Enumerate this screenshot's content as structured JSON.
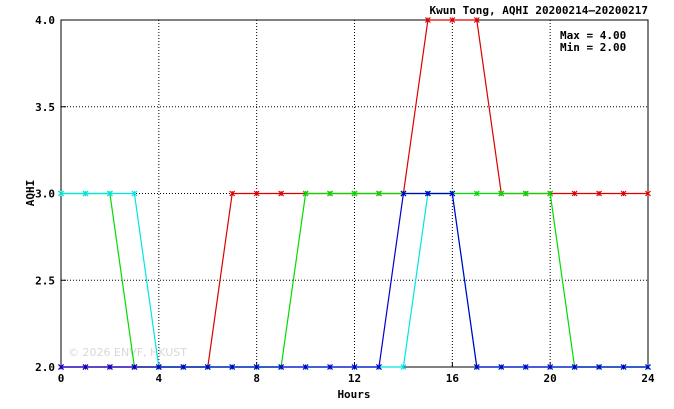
{
  "chart_data": {
    "type": "line",
    "title": "Kwun Tong, AQHI 20200214–20200217",
    "xlabel": "Hours",
    "ylabel": "AQHI",
    "xlim": [
      0,
      24
    ],
    "ylim": [
      2.0,
      4.0
    ],
    "xticks": [
      0,
      4,
      8,
      12,
      16,
      20,
      24
    ],
    "yticks": [
      2.0,
      2.5,
      3.0,
      3.5,
      4.0
    ],
    "xtick_labels": [
      "0",
      "4",
      "8",
      "12",
      "16",
      "20",
      "24"
    ],
    "ytick_labels": [
      "2.0",
      "2.5",
      "3.0",
      "3.5",
      "4.0"
    ],
    "grid": true,
    "stats": {
      "max": "Max = 4.00",
      "min": "Min = 2.00"
    },
    "watermark": "© 2026  ENVF, HKUST",
    "series": [
      {
        "color": "#dd0000",
        "x": [
          0,
          1,
          2,
          3,
          4,
          5,
          6,
          7,
          8,
          9,
          10,
          11,
          12,
          13,
          14,
          15,
          16,
          17,
          18,
          19,
          20,
          21,
          22,
          23,
          24
        ],
        "y": [
          2,
          2,
          2,
          2,
          2,
          2,
          2,
          3,
          3,
          3,
          3,
          3,
          3,
          3,
          3,
          4,
          4,
          4,
          3,
          3,
          3,
          3,
          3,
          3,
          3
        ]
      },
      {
        "color": "#00dd00",
        "x": [
          0,
          1,
          2,
          3,
          4,
          5,
          6,
          7,
          8,
          9,
          10,
          11,
          12,
          13,
          14,
          15,
          16,
          17,
          18,
          19,
          20,
          21,
          22,
          23,
          24
        ],
        "y": [
          3,
          3,
          3,
          2,
          2,
          2,
          2,
          2,
          2,
          2,
          3,
          3,
          3,
          3,
          3,
          3,
          3,
          3,
          3,
          3,
          3,
          2,
          2,
          2,
          2
        ]
      },
      {
        "color": "#00e5e5",
        "x": [
          0,
          1,
          2,
          3,
          4,
          5,
          6,
          7,
          8,
          9,
          10,
          11,
          12,
          13,
          14,
          15,
          16,
          17,
          18,
          19,
          20,
          21,
          22,
          23,
          24
        ],
        "y": [
          3,
          3,
          3,
          3,
          2,
          2,
          2,
          2,
          2,
          2,
          2,
          2,
          2,
          2,
          2,
          3,
          3,
          2,
          2,
          2,
          2,
          2,
          2,
          2,
          2
        ]
      },
      {
        "color": "#0000cc",
        "x": [
          0,
          1,
          2,
          3,
          4,
          5,
          6,
          7,
          8,
          9,
          10,
          11,
          12,
          13,
          14,
          15,
          16,
          17,
          18,
          19,
          20,
          21,
          22,
          23,
          24
        ],
        "y": [
          2,
          2,
          2,
          2,
          2,
          2,
          2,
          2,
          2,
          2,
          2,
          2,
          2,
          2,
          3,
          3,
          3,
          2,
          2,
          2,
          2,
          2,
          2,
          2,
          2
        ]
      }
    ]
  }
}
